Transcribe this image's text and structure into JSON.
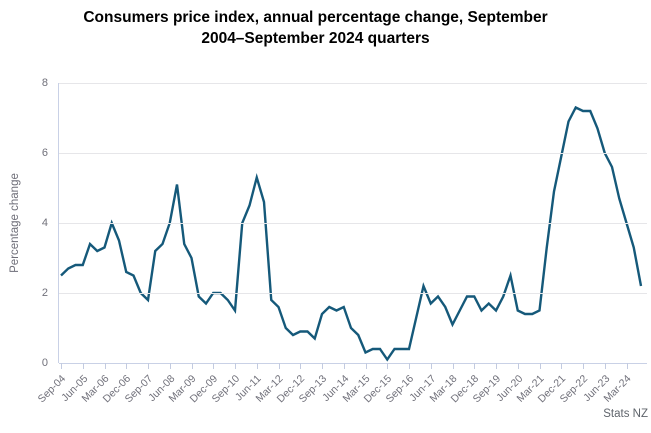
{
  "title": {
    "line1": "Consumers price index, annual percentage change, September",
    "line2": "2004–September 2024 quarters"
  },
  "source_label": "Stats NZ",
  "colors": {
    "line": "#15597a",
    "grid": "#e6e6e9",
    "axis": "#c9d1e6",
    "tick": "#c3cbe0",
    "tick_text": "#70707a",
    "title_text": "#000000",
    "source_text": "#5f646b"
  },
  "chart_data": {
    "type": "line",
    "title": "Consumers price index, annual percentage change, September 2004–September 2024 quarters",
    "xlabel": "",
    "ylabel": "Percentage change",
    "ylim": [
      0,
      8
    ],
    "y_ticks": [
      0,
      2,
      4,
      6,
      8
    ],
    "grid": "horizontal",
    "legend": "none",
    "line_color": "#15597a",
    "x_start": "Sep-04",
    "x_end": "Sep-24",
    "frequency": "quarterly",
    "x_tick_every": 3,
    "x_tick_labels": [
      "Sep-04",
      "Jun-05",
      "Mar-06",
      "Dec-06",
      "Sep-07",
      "Jun-08",
      "Mar-09",
      "Dec-09",
      "Sep-10",
      "Jun-11",
      "Mar-12",
      "Dec-12",
      "Sep-13",
      "Jun-14",
      "Mar-15",
      "Dec-15",
      "Sep-16",
      "Jun-17",
      "Mar-18",
      "Dec-18",
      "Sep-19",
      "Jun-20",
      "Mar-21",
      "Dec-21",
      "Sep-22",
      "Jun-23",
      "Mar-24"
    ],
    "values": [
      2.5,
      2.7,
      2.8,
      2.8,
      3.4,
      3.2,
      3.3,
      4.0,
      3.5,
      2.6,
      2.5,
      2.0,
      1.8,
      3.2,
      3.4,
      4.0,
      5.1,
      3.4,
      3.0,
      1.9,
      1.7,
      2.0,
      2.0,
      1.8,
      1.5,
      4.0,
      4.5,
      5.3,
      4.6,
      1.8,
      1.6,
      1.0,
      0.8,
      0.9,
      0.9,
      0.7,
      1.4,
      1.6,
      1.5,
      1.6,
      1.0,
      0.8,
      0.3,
      0.4,
      0.4,
      0.1,
      0.4,
      0.4,
      0.4,
      1.3,
      2.2,
      1.7,
      1.9,
      1.6,
      1.1,
      1.5,
      1.9,
      1.9,
      1.5,
      1.7,
      1.5,
      1.9,
      2.5,
      1.5,
      1.4,
      1.4,
      1.5,
      3.3,
      4.9,
      5.9,
      6.9,
      7.3,
      7.2,
      7.2,
      6.7,
      6.0,
      5.6,
      4.7,
      4.0,
      3.3,
      2.2
    ]
  }
}
